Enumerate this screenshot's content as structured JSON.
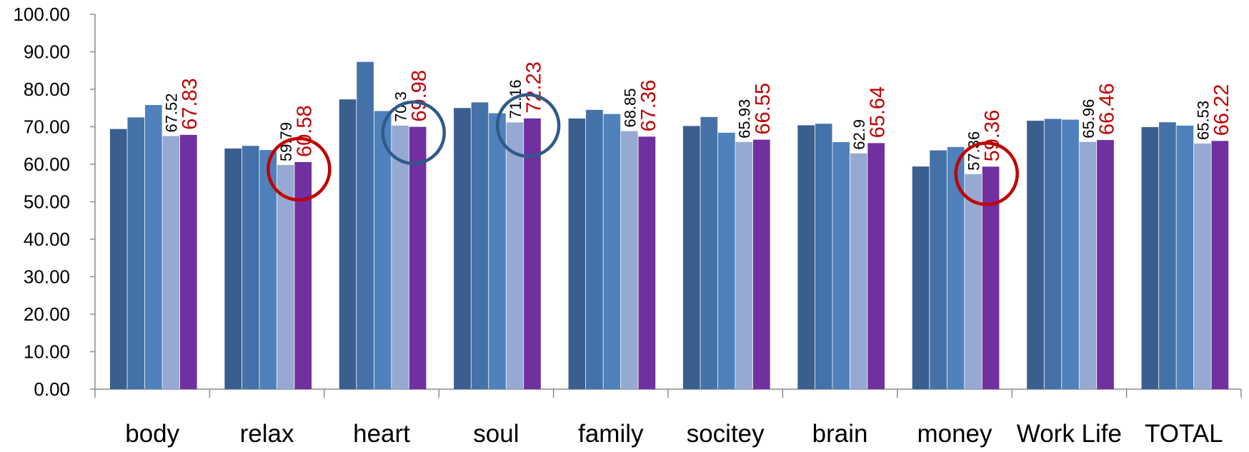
{
  "chart_data": {
    "type": "bar",
    "categories": [
      "body",
      "relax",
      "heart",
      "soul",
      "family",
      "socitey",
      "brain",
      "money",
      "Work Life",
      "TOTAL"
    ],
    "series": [
      {
        "color": "#3a5f8f",
        "values": [
          69.4,
          64.2,
          77.3,
          75.0,
          72.2,
          70.2,
          70.4,
          59.4,
          71.6,
          69.9
        ]
      },
      {
        "color": "#4472a8",
        "values": [
          72.5,
          64.9,
          87.3,
          76.5,
          74.5,
          72.6,
          70.8,
          63.7,
          72.1,
          71.2
        ]
      },
      {
        "color": "#4f81bd",
        "values": [
          75.8,
          63.8,
          74.2,
          73.6,
          73.4,
          68.4,
          65.9,
          64.6,
          71.9,
          70.3
        ]
      },
      {
        "color": "#95a9d2",
        "values": [
          67.52,
          59.79,
          70.3,
          71.16,
          68.85,
          65.93,
          62.9,
          57.36,
          65.96,
          65.53
        ]
      },
      {
        "color": "#7030a0",
        "values": [
          67.83,
          60.58,
          69.98,
          72.23,
          67.36,
          66.55,
          65.64,
          59.36,
          66.46,
          66.22
        ]
      }
    ],
    "data_labels": {
      "series_4": [
        "67.52",
        "59.79",
        "70.3",
        "71.16",
        "68.85",
        "65.93",
        "62.9",
        "57.36",
        "65.96",
        "65.53"
      ],
      "series_5": [
        "67.83",
        "60.58",
        "69.98",
        "72.23",
        "67.36",
        "66.55",
        "65.64",
        "59.36",
        "66.46",
        "66.22"
      ]
    },
    "y_ticks": [
      "0.00",
      "10.00",
      "20.00",
      "30.00",
      "40.00",
      "50.00",
      "60.00",
      "70.00",
      "80.00",
      "90.00",
      "100.00"
    ],
    "ylim": [
      0,
      100
    ],
    "grid": false,
    "legend": "none",
    "label_colors": {
      "series_4": "#000000",
      "series_5": "#c00000"
    },
    "annotations": [
      {
        "shape": "circle",
        "category": "relax",
        "color": "#c00000"
      },
      {
        "shape": "circle",
        "category": "heart",
        "color": "#2f5a8a"
      },
      {
        "shape": "circle",
        "category": "soul",
        "color": "#2f5a8a"
      },
      {
        "shape": "circle",
        "category": "money",
        "color": "#c00000"
      }
    ]
  }
}
